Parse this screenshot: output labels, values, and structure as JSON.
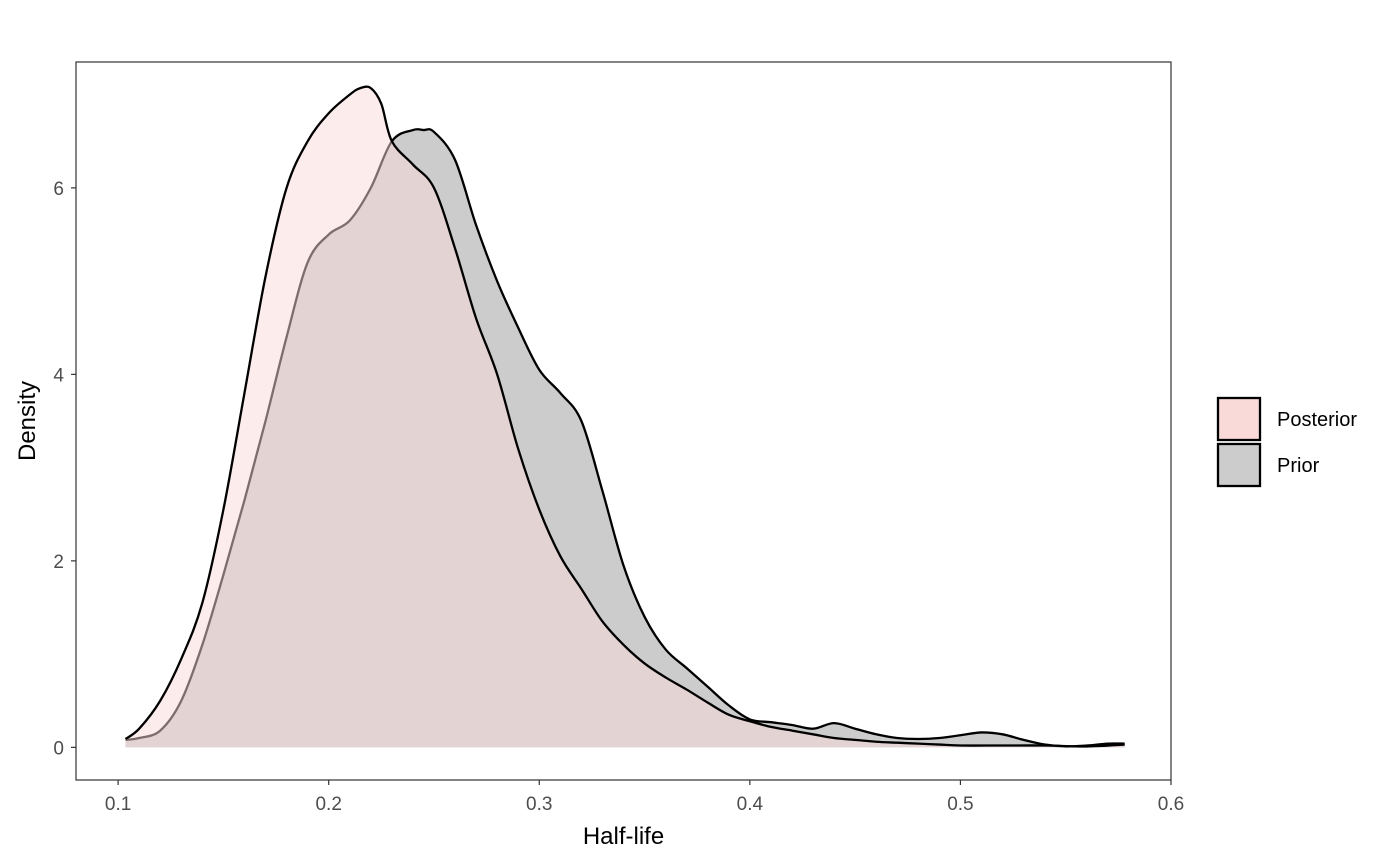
{
  "chart_data": {
    "type": "area",
    "xlabel": "Half-life",
    "ylabel": "Density",
    "xlim": [
      0.08,
      0.6
    ],
    "ylim": [
      -0.35,
      7.35
    ],
    "x_ticks": [
      0.1,
      0.2,
      0.3,
      0.4,
      0.5,
      0.6
    ],
    "x_tick_labels": [
      "0.1",
      "0.2",
      "0.3",
      "0.4",
      "0.5",
      "0.6"
    ],
    "y_ticks": [
      0,
      2,
      4,
      6
    ],
    "y_tick_labels": [
      "0",
      "2",
      "4",
      "6"
    ],
    "grid": false,
    "legend_position": "right",
    "series": [
      {
        "name": "Posterior",
        "color": "#f8766d",
        "fill": "#f9dad8",
        "x": [
          0.1035,
          0.11,
          0.12,
          0.13,
          0.14,
          0.15,
          0.16,
          0.17,
          0.18,
          0.19,
          0.2,
          0.21,
          0.215,
          0.22,
          0.225,
          0.23,
          0.24,
          0.25,
          0.26,
          0.27,
          0.28,
          0.29,
          0.3,
          0.31,
          0.32,
          0.33,
          0.34,
          0.35,
          0.36,
          0.37,
          0.38,
          0.39,
          0.4,
          0.41,
          0.42,
          0.43,
          0.44,
          0.45,
          0.46,
          0.47,
          0.48,
          0.49,
          0.5,
          0.52,
          0.54,
          0.56,
          0.578
        ],
        "values": [
          0.09,
          0.2,
          0.5,
          0.95,
          1.55,
          2.55,
          3.8,
          5.05,
          6.0,
          6.5,
          6.8,
          7.0,
          7.07,
          7.07,
          6.9,
          6.5,
          6.25,
          6.0,
          5.35,
          4.6,
          4.0,
          3.2,
          2.55,
          2.05,
          1.7,
          1.35,
          1.1,
          0.9,
          0.75,
          0.62,
          0.48,
          0.35,
          0.28,
          0.22,
          0.18,
          0.14,
          0.1,
          0.08,
          0.06,
          0.05,
          0.04,
          0.03,
          0.02,
          0.02,
          0.02,
          0.01,
          0.03
        ]
      },
      {
        "name": "Prior",
        "color": "#000000",
        "fill": "#cccccc",
        "x": [
          0.1035,
          0.11,
          0.12,
          0.13,
          0.14,
          0.15,
          0.16,
          0.17,
          0.18,
          0.19,
          0.2,
          0.21,
          0.22,
          0.23,
          0.24,
          0.245,
          0.25,
          0.26,
          0.27,
          0.28,
          0.29,
          0.3,
          0.31,
          0.32,
          0.33,
          0.34,
          0.35,
          0.36,
          0.37,
          0.38,
          0.39,
          0.4,
          0.41,
          0.42,
          0.43,
          0.44,
          0.45,
          0.46,
          0.47,
          0.48,
          0.49,
          0.5,
          0.51,
          0.52,
          0.53,
          0.54,
          0.55,
          0.56,
          0.57,
          0.578
        ],
        "values": [
          0.08,
          0.1,
          0.18,
          0.5,
          1.1,
          1.85,
          2.65,
          3.5,
          4.4,
          5.2,
          5.5,
          5.65,
          6.0,
          6.5,
          6.62,
          6.62,
          6.6,
          6.3,
          5.6,
          5.0,
          4.5,
          4.05,
          3.8,
          3.5,
          2.75,
          1.95,
          1.4,
          1.05,
          0.85,
          0.65,
          0.45,
          0.3,
          0.27,
          0.24,
          0.2,
          0.26,
          0.2,
          0.14,
          0.1,
          0.09,
          0.1,
          0.13,
          0.16,
          0.14,
          0.08,
          0.03,
          0.01,
          0.02,
          0.04,
          0.04
        ]
      }
    ]
  }
}
